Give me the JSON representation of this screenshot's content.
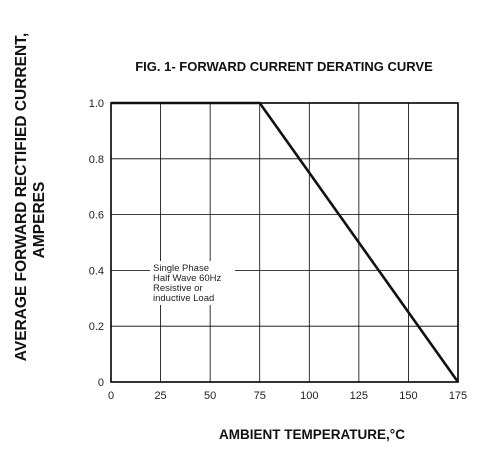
{
  "chart_data": {
    "type": "line",
    "title": "FIG. 1- FORWARD CURRENT DERATING CURVE",
    "xlabel": "AMBIENT TEMPERATURE,°C",
    "ylabel_line1": "AVERAGE FORWARD RECTIFIED CURRENT,",
    "ylabel_line2": "AMPERES",
    "xlim": [
      0,
      175
    ],
    "ylim": [
      0,
      1.0
    ],
    "x_ticks": [
      "0",
      "25",
      "50",
      "75",
      "100",
      "125",
      "150",
      "175"
    ],
    "y_ticks": [
      "0",
      "0.2",
      "0.4",
      "0.6",
      "0.8",
      "1.0"
    ],
    "grid": true,
    "series": [
      {
        "x": [
          0,
          75,
          175
        ],
        "y": [
          1.0,
          1.0,
          0.0
        ]
      }
    ],
    "annotation_lines": [
      "Single Phase",
      "Half Wave 60Hz",
      "Resistive or",
      "inductive Load"
    ]
  }
}
